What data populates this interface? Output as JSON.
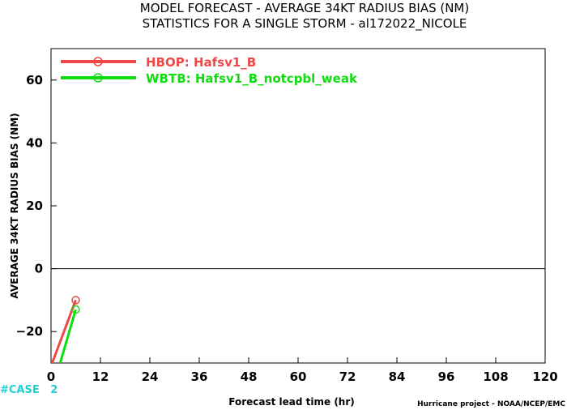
{
  "chart_data": {
    "type": "line",
    "title": "MODEL FORECAST - AVERAGE 34KT RADIUS BIAS (NM)",
    "subtitle": "STATISTICS FOR A SINGLE STORM - al172022_NICOLE",
    "xlabel": "Forecast lead time (hr)",
    "ylabel": "AVERAGE 34KT RADIUS BIAS (NM)",
    "xlim": [
      0,
      120
    ],
    "ylim": [
      -30,
      70
    ],
    "xticks": [
      0,
      12,
      24,
      36,
      48,
      60,
      72,
      84,
      96,
      108,
      120
    ],
    "yticks": [
      -20,
      0,
      20,
      40,
      60
    ],
    "zero_line": true,
    "legend_position": "top-left",
    "series": [
      {
        "name": "HBOP: Hafsv1_B",
        "color": "#f04848",
        "x": [
          0,
          6
        ],
        "y": [
          -31,
          -10
        ]
      },
      {
        "name": "WBTB: Hafsv1_B_notcpbl_weak",
        "color": "#10dd10",
        "x": [
          0,
          6
        ],
        "y": [
          -40,
          -13
        ]
      }
    ],
    "case_label": {
      "prefix": "#CASE",
      "values": [
        "2"
      ],
      "color": "#20d0d0"
    },
    "credit": "Hurricane project - NOAA/NCEP/EMC"
  }
}
